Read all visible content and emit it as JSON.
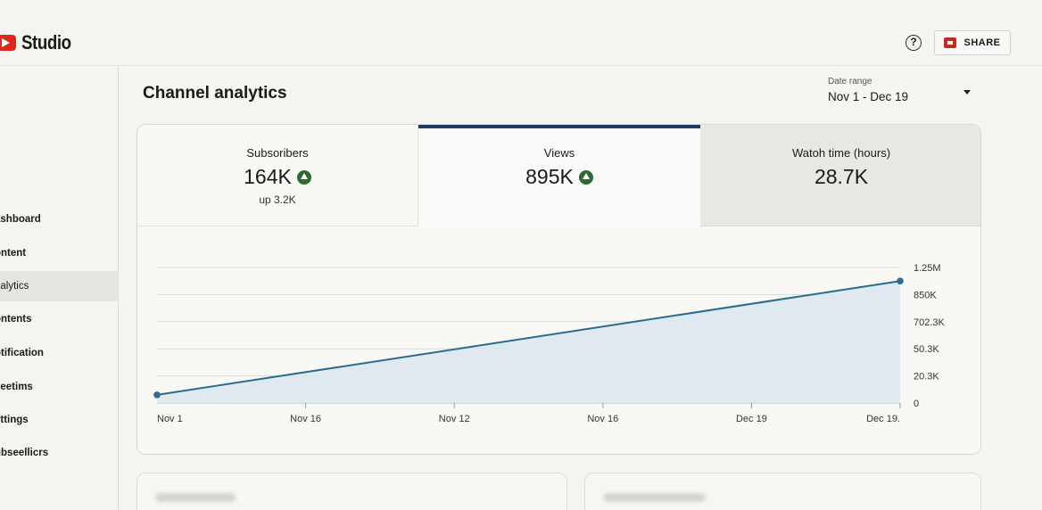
{
  "app": {
    "logo_text": "Studio"
  },
  "header": {
    "help_glyph": "?",
    "share_label": "SHARE"
  },
  "sidebar": {
    "items": [
      {
        "label": "ashboard",
        "active": false
      },
      {
        "label": "ontent",
        "active": false
      },
      {
        "label": "nalytics",
        "active": true
      },
      {
        "label": "ontents",
        "active": false
      },
      {
        "label": "otification",
        "active": false
      },
      {
        "label": "veetims",
        "active": false
      },
      {
        "label": "ettings",
        "active": false
      },
      {
        "label": "ubseellicrs",
        "active": false
      }
    ]
  },
  "main": {
    "title": "Channel analytics",
    "date_range": {
      "label": "Date range",
      "value": "Nov 1 - Dec 19"
    }
  },
  "metrics": [
    {
      "label": "Subsoribers",
      "value": "164K",
      "sub": "up 3.2K",
      "trend": "up"
    },
    {
      "label": "Views",
      "value": "895K",
      "trend": "up",
      "selected": true
    },
    {
      "label": "Watoh time (hours)",
      "value": "28.7K"
    }
  ],
  "chart_data": {
    "type": "area",
    "x_ticks": [
      "Nov 1",
      "Nov 16",
      "Nov 12",
      "Nov 16",
      "Dec 19",
      "Dec 19."
    ],
    "y_ticks": [
      "1.25M",
      "850K",
      "702.3K",
      "50.3K",
      "20.3K",
      "0"
    ],
    "series": [
      {
        "points": [
          {
            "x": "Nov 1",
            "y": 0.3
          },
          {
            "x": "Dec 19",
            "y": 4.5
          }
        ]
      }
    ],
    "y_scale": "tick-index",
    "grid": true,
    "colors": {
      "line": "#2a6b8f",
      "fill": "#dbe7ee"
    }
  },
  "colors": {
    "accent": "#1f3b5c",
    "brand": "#e0261c",
    "up": "#2d6a2f"
  }
}
